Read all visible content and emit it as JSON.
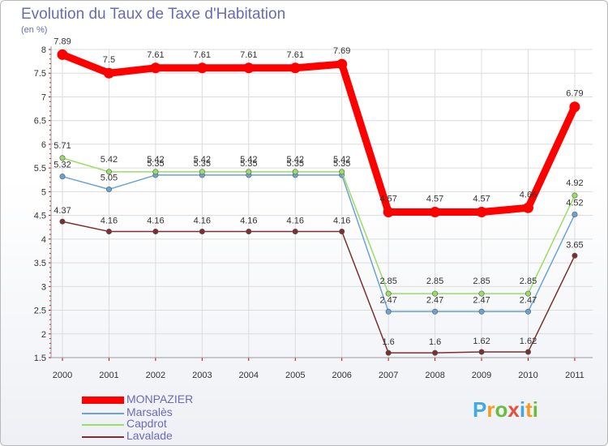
{
  "header": {
    "title": "Evolution du Taux de Taxe d'Habitation",
    "subtitle": "(en %)"
  },
  "chart_data": {
    "type": "line",
    "title": "Evolution du Taux de Taxe d'Habitation",
    "ylabel": "(en %)",
    "xlabel": "",
    "ylim": [
      1.5,
      8
    ],
    "yticks": [
      "1.5",
      "2",
      "2.5",
      "3",
      "3.5",
      "4",
      "4.5",
      "5",
      "5.5",
      "6",
      "6.5",
      "7",
      "7.5",
      "8"
    ],
    "categories": [
      "2000",
      "2001",
      "2002",
      "2003",
      "2004",
      "2005",
      "2006",
      "2007",
      "2008",
      "2009",
      "2010",
      "2011"
    ],
    "grid": true,
    "series": [
      {
        "name": "MONPAZIER",
        "color": "#ff0000",
        "values": [
          7.89,
          7.5,
          7.61,
          7.61,
          7.61,
          7.61,
          7.69,
          4.57,
          4.57,
          4.57,
          4.66,
          6.79
        ],
        "labels": [
          "7.89",
          "7.5",
          "7.61",
          "7.61",
          "7.61",
          "7.61",
          "7.69",
          "4.57",
          "4.57",
          "4.57",
          "4.66",
          "6.79"
        ]
      },
      {
        "name": "Marsalès",
        "color": "#6aa3d6",
        "values": [
          5.32,
          5.05,
          5.35,
          5.35,
          5.35,
          5.35,
          5.35,
          2.47,
          2.47,
          2.47,
          2.47,
          4.52
        ],
        "labels": [
          "5.32",
          "5.05",
          "5.35",
          "5.35",
          "5.35",
          "5.35",
          "5.35",
          "2.47",
          "2.47",
          "2.47",
          "2.47",
          "4.52"
        ]
      },
      {
        "name": "Capdrot",
        "color": "#99dd66",
        "values": [
          5.71,
          5.42,
          5.42,
          5.42,
          5.42,
          5.42,
          5.42,
          2.85,
          2.85,
          2.85,
          2.85,
          4.92
        ],
        "labels": [
          "5.71",
          "5.42",
          "5.42",
          "5.42",
          "5.42",
          "5.42",
          "5.42",
          "2.85",
          "2.85",
          "2.85",
          "2.85",
          "4.92"
        ]
      },
      {
        "name": "Lavalade",
        "color": "#7a3030",
        "values": [
          4.37,
          4.16,
          4.16,
          4.16,
          4.16,
          4.16,
          4.16,
          1.6,
          1.6,
          1.62,
          1.62,
          3.65
        ],
        "labels": [
          "4.37",
          "4.16",
          "4.16",
          "4.16",
          "4.16",
          "4.16",
          "4.16",
          "1.6",
          "1.6",
          "1.62",
          "1.62",
          "3.65"
        ]
      }
    ]
  },
  "logo": {
    "letters": [
      "P",
      "r",
      "o",
      "x",
      "i",
      "t",
      "i"
    ],
    "colors": [
      "#3fa9e0",
      "#f49b1f",
      "#6dbb3d",
      "#e94e3a",
      "#3fa9e0",
      "#f49b1f",
      "#6dbb3d"
    ]
  }
}
